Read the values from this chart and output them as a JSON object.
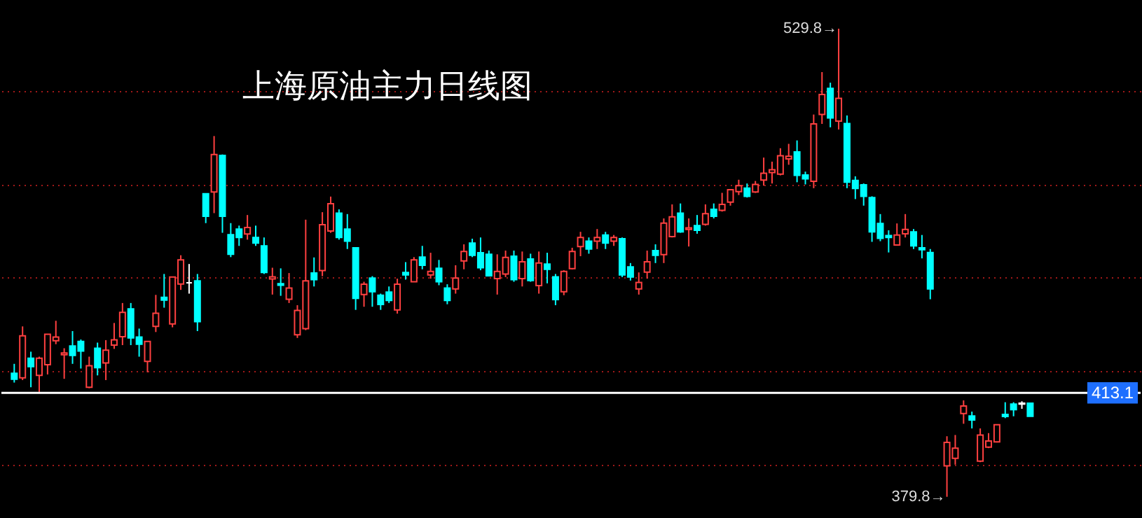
{
  "chart_data": {
    "type": "candlestick",
    "title": "上海原油主力日线图",
    "categories": [
      null,
      null,
      null,
      null,
      null,
      null,
      null,
      null,
      null,
      null,
      null,
      null,
      null,
      null,
      null,
      null,
      null,
      null,
      null,
      null,
      null,
      null,
      null,
      null,
      null,
      null,
      null,
      null,
      null,
      null,
      null,
      null,
      null,
      null,
      null,
      null,
      null,
      null,
      null,
      null,
      null,
      null,
      null,
      null,
      null,
      null,
      null,
      null,
      null,
      null,
      null,
      null,
      null,
      null,
      null,
      null,
      null,
      null,
      null,
      null,
      null,
      null,
      null,
      null,
      null,
      null,
      null,
      null,
      null,
      null,
      null,
      null,
      null,
      null,
      null,
      null,
      null,
      null,
      null,
      null,
      null,
      null,
      null,
      null,
      null,
      null,
      null,
      null,
      null,
      null,
      null,
      null,
      null,
      null,
      null,
      null,
      null,
      null,
      null,
      null,
      null,
      null,
      null,
      null,
      null,
      null,
      null,
      null,
      null,
      null,
      null,
      null,
      null,
      null,
      null,
      null,
      null,
      null,
      null,
      null,
      null,
      null,
      null
    ],
    "ohlc": [
      [
        419.4,
        422.4,
        416.4,
        417.5
      ],
      [
        417.9,
        434.4,
        417.2,
        431.4
      ],
      [
        424.2,
        426.3,
        414.9,
        421.5
      ],
      [
        418.7,
        424.7,
        413.4,
        424.2
      ],
      [
        422.1,
        431.9,
        419.0,
        431.9
      ],
      [
        429.8,
        436.2,
        428.7,
        431.0
      ],
      [
        425.3,
        427.4,
        417.6,
        425.9
      ],
      [
        428.1,
        432.9,
        422.4,
        425.1
      ],
      [
        429.6,
        430.2,
        420.9,
        426.5
      ],
      [
        414.9,
        424.7,
        414.6,
        421.8
      ],
      [
        427.4,
        429.2,
        418.7,
        421.2
      ],
      [
        422.7,
        430.0,
        417.2,
        426.8
      ],
      [
        428.4,
        435.5,
        427.2,
        430.1
      ],
      [
        431.1,
        441.9,
        428.4,
        438.9
      ],
      [
        440.0,
        441.9,
        428.4,
        430.7
      ],
      [
        431.0,
        433.7,
        424.7,
        428.7
      ],
      [
        423.2,
        429.6,
        419.7,
        429.6
      ],
      [
        434.4,
        444.5,
        432.6,
        438.6
      ],
      [
        443.7,
        451.2,
        440.4,
        442.8
      ],
      [
        435.2,
        450.2,
        434.1,
        450.2
      ],
      [
        448.0,
        457.2,
        446.1,
        455.7
      ],
      [
        448.4,
        454.4,
        444.9,
        448.4
      ],
      [
        449.0,
        451.2,
        432.9,
        435.9
      ],
      [
        476.9,
        476.9,
        467.5,
        469.7
      ],
      [
        477.5,
        495.4,
        470.7,
        489.5
      ],
      [
        489.2,
        489.5,
        464.4,
        469.7
      ],
      [
        463.8,
        467.5,
        456.6,
        457.5
      ],
      [
        465.6,
        466.7,
        460.2,
        462.9
      ],
      [
        464.0,
        470.1,
        462.2,
        466.1
      ],
      [
        462.9,
        466.7,
        460.2,
        461.1
      ],
      [
        460.2,
        462.9,
        451.2,
        451.7
      ],
      [
        449.6,
        453.2,
        444.6,
        450.3
      ],
      [
        448.1,
        453.0,
        444.2,
        447.6
      ],
      [
        443.1,
        451.5,
        441.9,
        446.7
      ],
      [
        431.7,
        441.2,
        430.7,
        439.5
      ],
      [
        433.7,
        468.6,
        433.2,
        449.0
      ],
      [
        451.5,
        456.5,
        447.2,
        449.4
      ],
      [
        452.3,
        471.0,
        450.5,
        467.0
      ],
      [
        465.0,
        476.0,
        464.4,
        473.7
      ],
      [
        470.7,
        471.9,
        462.2,
        462.9
      ],
      [
        465.6,
        470.4,
        459.2,
        461.7
      ],
      [
        459.6,
        459.6,
        439.7,
        443.4
      ],
      [
        444.6,
        448.7,
        440.7,
        447.9
      ],
      [
        449.9,
        450.5,
        440.7,
        445.5
      ],
      [
        444.4,
        444.9,
        439.7,
        441.4
      ],
      [
        445.4,
        447.2,
        441.9,
        442.7
      ],
      [
        439.7,
        449.7,
        438.5,
        447.9
      ],
      [
        451.7,
        455.0,
        449.4,
        450.9
      ],
      [
        448.7,
        456.6,
        448.7,
        455.7
      ],
      [
        456.6,
        460.2,
        452.7,
        454.0
      ],
      [
        450.9,
        458.0,
        449.7,
        452.0
      ],
      [
        453.0,
        455.7,
        447.6,
        448.7
      ],
      [
        446.7,
        447.9,
        441.5,
        442.7
      ],
      [
        446.4,
        454.0,
        444.9,
        449.9
      ],
      [
        455.4,
        460.7,
        452.7,
        458.4
      ],
      [
        461.1,
        462.5,
        456.6,
        457.2
      ],
      [
        458.0,
        462.9,
        452.4,
        453.2
      ],
      [
        457.5,
        458.7,
        450.6,
        450.6
      ],
      [
        449.7,
        457.5,
        444.6,
        452.0
      ],
      [
        451.2,
        458.7,
        450.2,
        456.5
      ],
      [
        456.9,
        458.7,
        448.7,
        449.4
      ],
      [
        449.7,
        458.4,
        447.2,
        455.1
      ],
      [
        456.0,
        457.7,
        448.7,
        449.1
      ],
      [
        447.5,
        458.4,
        444.9,
        454.7
      ],
      [
        454.4,
        458.0,
        448.2,
        452.7
      ],
      [
        450.3,
        451.2,
        441.2,
        443.0
      ],
      [
        445.5,
        452.4,
        444.4,
        452.0
      ],
      [
        452.9,
        459.6,
        452.7,
        458.4
      ],
      [
        460.0,
        464.7,
        456.9,
        462.9
      ],
      [
        461.7,
        462.9,
        457.7,
        459.2
      ],
      [
        461.7,
        465.6,
        459.2,
        462.9
      ],
      [
        463.7,
        464.7,
        459.2,
        461.1
      ],
      [
        461.7,
        463.7,
        460.2,
        462.9
      ],
      [
        462.5,
        462.9,
        450.2,
        450.9
      ],
      [
        453.5,
        454.7,
        449.1,
        450.2
      ],
      [
        446.4,
        451.7,
        444.6,
        448.5
      ],
      [
        451.8,
        458.7,
        449.7,
        455.1
      ],
      [
        458.7,
        460.7,
        454.7,
        457.2
      ],
      [
        457.4,
        469.0,
        454.7,
        467.5
      ],
      [
        463.2,
        473.5,
        462.9,
        469.5
      ],
      [
        470.7,
        473.8,
        464.4,
        464.7
      ],
      [
        465.5,
        469.0,
        460.0,
        466.0
      ],
      [
        466.7,
        470.1,
        464.1,
        465.2
      ],
      [
        467.1,
        473.5,
        466.7,
        470.5
      ],
      [
        471.9,
        473.8,
        469.0,
        469.7
      ],
      [
        471.6,
        477.2,
        471.2,
        473.5
      ],
      [
        474.2,
        478.2,
        473.1,
        478.2
      ],
      [
        477.6,
        481.4,
        476.5,
        479.5
      ],
      [
        478.7,
        480.2,
        475.7,
        476.1
      ],
      [
        477.5,
        481.0,
        477.2,
        479.9
      ],
      [
        481.3,
        488.5,
        479.5,
        483.5
      ],
      [
        483.7,
        487.2,
        480.2,
        484.6
      ],
      [
        483.2,
        491.5,
        482.8,
        489.1
      ],
      [
        488.1,
        492.9,
        486.2,
        488.9
      ],
      [
        490.3,
        494.0,
        480.6,
        482.8
      ],
      [
        482.9,
        484.0,
        479.9,
        481.7
      ],
      [
        480.9,
        502.3,
        478.7,
        499.3
      ],
      [
        502.3,
        515.9,
        499.3,
        508.7
      ],
      [
        510.7,
        512.5,
        498.2,
        501.2
      ],
      [
        500.2,
        529.8,
        497.5,
        507.5
      ],
      [
        499.4,
        502.0,
        478.7,
        480.6
      ],
      [
        481.2,
        482.5,
        475.2,
        478.6
      ],
      [
        479.8,
        480.2,
        473.1,
        476.1
      ],
      [
        475.7,
        476.1,
        461.5,
        464.7
      ],
      [
        467.4,
        470.4,
        461.7,
        462.6
      ],
      [
        463.5,
        465.2,
        458.1,
        462.9
      ],
      [
        460.5,
        467.4,
        460.5,
        463.7
      ],
      [
        464.1,
        470.4,
        462.9,
        465.5
      ],
      [
        464.7,
        465.6,
        459.2,
        460.2
      ],
      [
        459.6,
        463.7,
        456.2,
        459.0
      ],
      [
        458.1,
        459.2,
        443.1,
        446.4
      ],
      null,
      [
        389.7,
        399.2,
        379.8,
        397.2
      ],
      [
        392.1,
        399.6,
        390.1,
        395.4
      ],
      [
        406.5,
        410.7,
        403.2,
        408.9
      ],
      [
        405.7,
        407.1,
        401.7,
        404.4
      ],
      [
        391.2,
        401.7,
        390.9,
        399.6
      ],
      [
        395.7,
        400.2,
        395.4,
        397.7
      ],
      [
        397.4,
        402.9,
        397.2,
        402.9
      ],
      [
        406.2,
        410.1,
        405.0,
        405.5
      ],
      [
        409.5,
        410.1,
        405.6,
        407.7
      ],
      [
        409.8,
        410.4,
        408.0,
        409.5
      ],
      [
        409.8,
        409.8,
        405.6,
        405.6
      ]
    ],
    "colors": [
      "#00ffff",
      "#ff4040",
      "#00ffff",
      "#ff4040",
      "#ff4040",
      "#ff4040",
      "#ff4040",
      "#00ffff",
      "#00ffff",
      "#ff4040",
      "#00ffff",
      "#ff4040",
      "#ff4040",
      "#ff4040",
      "#00ffff",
      "#00ffff",
      "#ff4040",
      "#ff4040",
      "#00ffff",
      "#ff4040",
      "#ff4040",
      "#ffffff",
      "#00ffff",
      "#00ffff",
      "#ff4040",
      "#00ffff",
      "#00ffff",
      "#00ffff",
      "#ff4040",
      "#00ffff",
      "#00ffff",
      "#ff4040",
      "#00ffff",
      "#ff4040",
      "#ff4040",
      "#ff4040",
      "#00ffff",
      "#ff4040",
      "#ff4040",
      "#00ffff",
      "#00ffff",
      "#00ffff",
      "#ff4040",
      "#00ffff",
      "#00ffff",
      "#00ffff",
      "#ff4040",
      "#00ffff",
      "#ff4040",
      "#00ffff",
      "#ff4040",
      "#00ffff",
      "#00ffff",
      "#ff4040",
      "#ff4040",
      "#00ffff",
      "#00ffff",
      "#00ffff",
      "#ff4040",
      "#ff4040",
      "#00ffff",
      "#ff4040",
      "#00ffff",
      "#ff4040",
      "#00ffff",
      "#00ffff",
      "#ff4040",
      "#ff4040",
      "#ff4040",
      "#00ffff",
      "#ff4040",
      "#00ffff",
      "#ff4040",
      "#00ffff",
      "#00ffff",
      "#ff4040",
      "#ff4040",
      "#00ffff",
      "#ff4040",
      "#ff4040",
      "#00ffff",
      "#ff4040",
      "#00ffff",
      "#ff4040",
      "#00ffff",
      "#ff4040",
      "#ff4040",
      "#ff4040",
      "#00ffff",
      "#ff4040",
      "#ff4040",
      "#ff4040",
      "#ff4040",
      "#ff4040",
      "#00ffff",
      "#00ffff",
      "#ff4040",
      "#ff4040",
      "#00ffff",
      "#ff4040",
      "#00ffff",
      "#00ffff",
      "#00ffff",
      "#00ffff",
      "#00ffff",
      "#00ffff",
      "#ff4040",
      "#ff4040",
      "#00ffff",
      "#00ffff",
      "#00ffff",
      null,
      "#ff4040",
      "#ff4040",
      "#ff4040",
      "#00ffff",
      "#ff4040",
      "#ff4040",
      "#ff4040",
      "#00ffff",
      "#00ffff",
      "#ffffff",
      "#00ffff"
    ],
    "ylim": [
      373,
      539
    ],
    "yticks": [
      {
        "value": 390,
        "label": null
      },
      {
        "value": 420,
        "label": null
      },
      {
        "value": 450,
        "label": null
      },
      {
        "value": 480,
        "label": null
      },
      {
        "value": 510,
        "label": null
      }
    ],
    "grid": true,
    "tick_labels": false,
    "ref_lines": [
      {
        "axis": "y",
        "value": 413.1,
        "label": "413.1",
        "color": "#ffffff"
      }
    ],
    "annotations": [
      "529.8→",
      "379.8→"
    ]
  }
}
